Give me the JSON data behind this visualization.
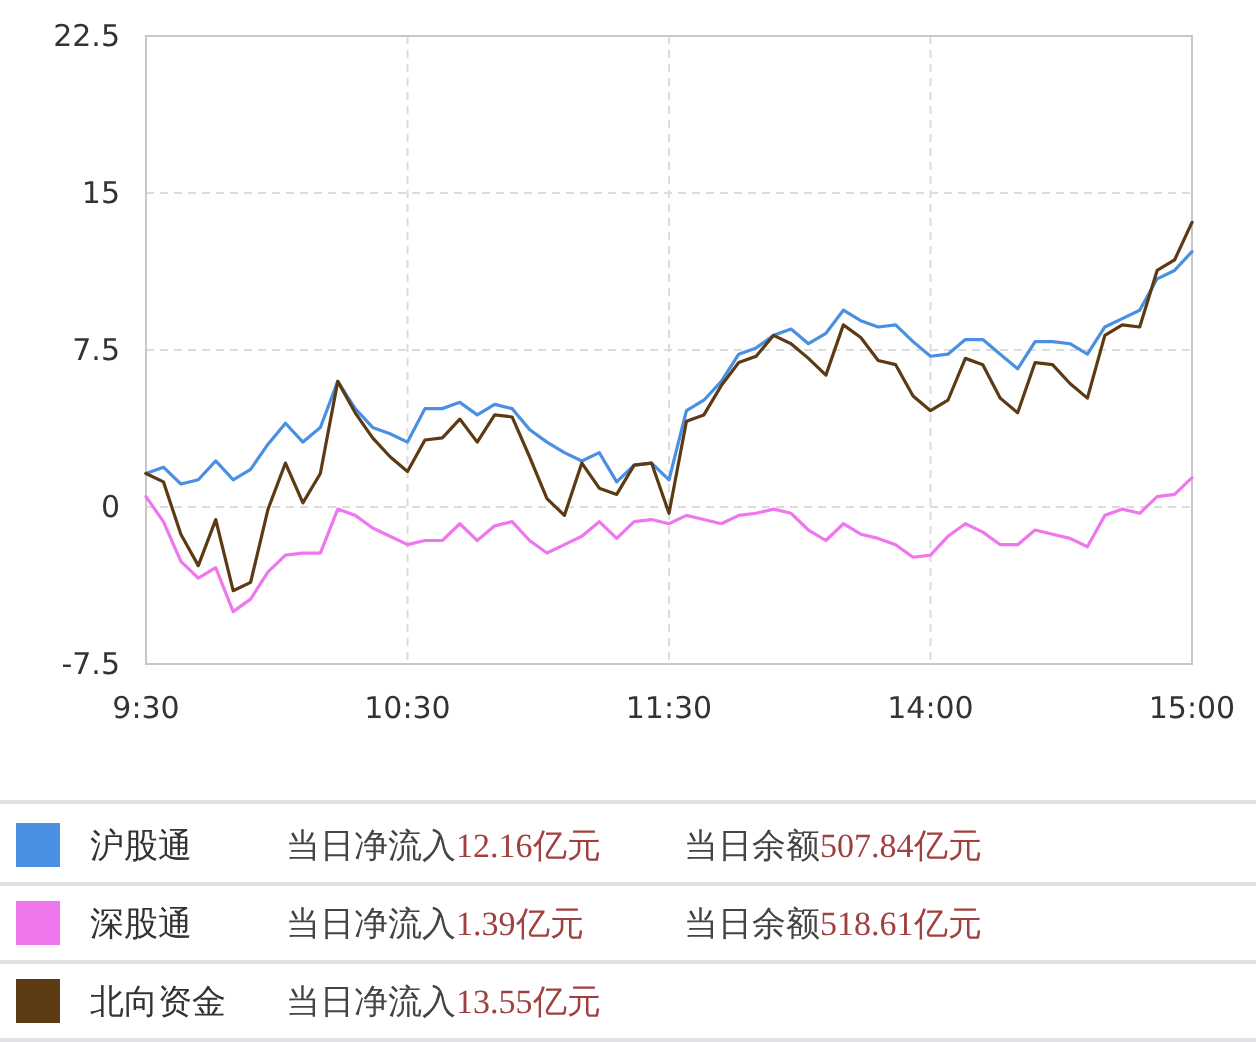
{
  "chart_data": {
    "type": "line",
    "categories": [
      "9:30",
      null,
      null,
      null,
      null,
      null,
      null,
      null,
      null,
      null,
      null,
      null,
      null,
      null,
      null,
      "10:30",
      null,
      null,
      null,
      null,
      null,
      null,
      null,
      null,
      null,
      null,
      null,
      null,
      null,
      null,
      "11:30",
      null,
      null,
      null,
      null,
      null,
      null,
      null,
      null,
      null,
      null,
      null,
      null,
      null,
      null,
      "14:00",
      null,
      null,
      null,
      null,
      null,
      null,
      null,
      null,
      null,
      null,
      null,
      null,
      null,
      null,
      "15:00"
    ],
    "ylim": [
      -7.5,
      22.5
    ],
    "yticks": [
      -7.5,
      0,
      7.5,
      15,
      22.5
    ],
    "grid": true,
    "legend": "bottom",
    "marker": "none",
    "line_style": "solid",
    "series": [
      {
        "name": "沪股通",
        "color": "#4a90e2",
        "values": [
          1.6,
          1.9,
          1.1,
          1.3,
          2.2,
          1.3,
          1.8,
          3.0,
          4.0,
          3.1,
          3.8,
          6.0,
          4.7,
          3.8,
          3.5,
          3.1,
          4.7,
          4.7,
          5.0,
          4.4,
          4.9,
          4.7,
          3.7,
          3.1,
          2.6,
          2.2,
          2.6,
          1.2,
          2.0,
          2.1,
          1.3,
          4.6,
          5.1,
          6.0,
          7.3,
          7.6,
          8.2,
          8.5,
          7.8,
          8.3,
          9.4,
          8.9,
          8.6,
          8.7,
          7.9,
          7.2,
          7.3,
          8.0,
          8.0,
          7.3,
          6.6,
          7.9,
          7.9,
          7.8,
          7.3,
          8.6,
          9.0,
          9.4,
          10.9,
          11.3,
          12.2
        ]
      },
      {
        "name": "深股通",
        "color": "#ee77ee",
        "values": [
          0.5,
          -0.7,
          -2.6,
          -3.4,
          -2.9,
          -5.0,
          -4.4,
          -3.1,
          -2.3,
          -2.2,
          -2.2,
          -0.1,
          -0.4,
          -1.0,
          -1.4,
          -1.8,
          -1.6,
          -1.6,
          -0.8,
          -1.6,
          -0.9,
          -0.7,
          -1.6,
          -2.2,
          -1.8,
          -1.4,
          -0.7,
          -1.5,
          -0.7,
          -0.6,
          -0.8,
          -0.4,
          -0.6,
          -0.8,
          -0.4,
          -0.3,
          -0.1,
          -0.3,
          -1.1,
          -1.6,
          -0.8,
          -1.3,
          -1.5,
          -1.8,
          -2.4,
          -2.3,
          -1.4,
          -0.8,
          -1.2,
          -1.8,
          -1.8,
          -1.1,
          -1.3,
          -1.5,
          -1.9,
          -0.4,
          -0.1,
          -0.3,
          0.5,
          0.6,
          1.4
        ]
      },
      {
        "name": "北向资金",
        "color": "#5c3a14",
        "values": [
          1.6,
          1.2,
          -1.3,
          -2.8,
          -0.6,
          -4.0,
          -3.6,
          -0.1,
          2.1,
          0.2,
          1.6,
          6.0,
          4.5,
          3.3,
          2.4,
          1.7,
          3.2,
          3.3,
          4.2,
          3.1,
          4.4,
          4.3,
          2.4,
          0.4,
          -0.4,
          2.1,
          0.9,
          0.6,
          2.0,
          2.1,
          -0.3,
          4.1,
          4.4,
          5.8,
          6.9,
          7.2,
          8.2,
          7.8,
          7.1,
          6.3,
          8.7,
          8.1,
          7.0,
          6.8,
          5.3,
          4.6,
          5.1,
          7.1,
          6.8,
          5.2,
          4.5,
          6.9,
          6.8,
          5.9,
          5.2,
          8.2,
          8.7,
          8.6,
          11.3,
          11.8,
          13.6
        ]
      }
    ],
    "annotations": [
      "当日净流入12.16亿元",
      "当日余额507.84亿元",
      "当日净流入1.39亿元",
      "当日余额518.61亿元",
      "当日净流入13.55亿元"
    ]
  }
}
